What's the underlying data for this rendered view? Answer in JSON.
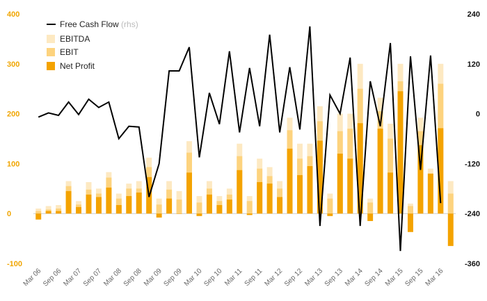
{
  "chart_data": {
    "type": "bar+line",
    "title": "",
    "left_axis": {
      "min": -100,
      "max": 400,
      "ticks": [
        400,
        300,
        200,
        100,
        0,
        -100
      ]
    },
    "right_axis": {
      "min": -360,
      "max": 240,
      "ticks": [
        240,
        120,
        0,
        -120,
        -240,
        -360
      ]
    },
    "x_tick_labels": [
      "Mar 06",
      "Sep 06",
      "Mar 07",
      "Sep 07",
      "Mar 08",
      "Sep 08",
      "Mar 09",
      "Sep 09",
      "Mar 10",
      "Sep 10",
      "Mar 11",
      "Sep 11",
      "Mar 12",
      "Sep 12",
      "Mar 13",
      "Sep 13",
      "Mar 14",
      "Sep 14",
      "Mar 15",
      "Sep 15",
      "Mar 16"
    ],
    "legend": {
      "line_label": "Free Cash Flow",
      "line_note": "(rhs)",
      "ebitda_label": "EBITDA",
      "ebit_label": "EBIT",
      "net_profit_label": "Net Profit"
    },
    "colors": {
      "ebitda": "#fde9c2",
      "ebit": "#fdd37e",
      "net_profit": "#f4a300",
      "line": "#000000",
      "left_axis_text": "#f0a500",
      "baseline": "#cccccc"
    },
    "series": [
      {
        "name": "EBITDA",
        "values": [
          10,
          15,
          17,
          65,
          25,
          63,
          50,
          83,
          40,
          60,
          65,
          112,
          30,
          65,
          45,
          145,
          35,
          65,
          35,
          50,
          140,
          35,
          110,
          93,
          65,
          192,
          140,
          140,
          215,
          40,
          200,
          200,
          300,
          30,
          232,
          180,
          300,
          20,
          192,
          90,
          300,
          65
        ]
      },
      {
        "name": "EBIT",
        "values": [
          5,
          8,
          10,
          55,
          18,
          48,
          40,
          72,
          30,
          50,
          50,
          93,
          18,
          48,
          28,
          122,
          22,
          50,
          25,
          38,
          115,
          25,
          90,
          75,
          50,
          167,
          110,
          115,
          185,
          30,
          165,
          170,
          250,
          22,
          205,
          150,
          265,
          15,
          165,
          80,
          260,
          40
        ]
      },
      {
        "name": "Net Profit",
        "values": [
          -12,
          5,
          5,
          45,
          13,
          38,
          33,
          52,
          17,
          35,
          42,
          73,
          -8,
          30,
          0,
          82,
          -5,
          38,
          17,
          28,
          87,
          -3,
          63,
          60,
          33,
          130,
          77,
          95,
          146,
          -5,
          120,
          110,
          181,
          -15,
          170,
          82,
          245,
          -37,
          137,
          80,
          171,
          -65
        ]
      },
      {
        "name": "Free Cash Flow",
        "axis": "right",
        "values": [
          -8,
          2,
          -4,
          28,
          -2,
          35,
          15,
          28,
          -60,
          -30,
          -32,
          -200,
          -120,
          103,
          103,
          160,
          -105,
          50,
          -25,
          150,
          -45,
          110,
          -30,
          190,
          -45,
          112,
          -38,
          210,
          -270,
          45,
          0,
          135,
          -270,
          78,
          -30,
          170,
          -330,
          138,
          -135,
          140,
          -215
        ]
      }
    ]
  }
}
